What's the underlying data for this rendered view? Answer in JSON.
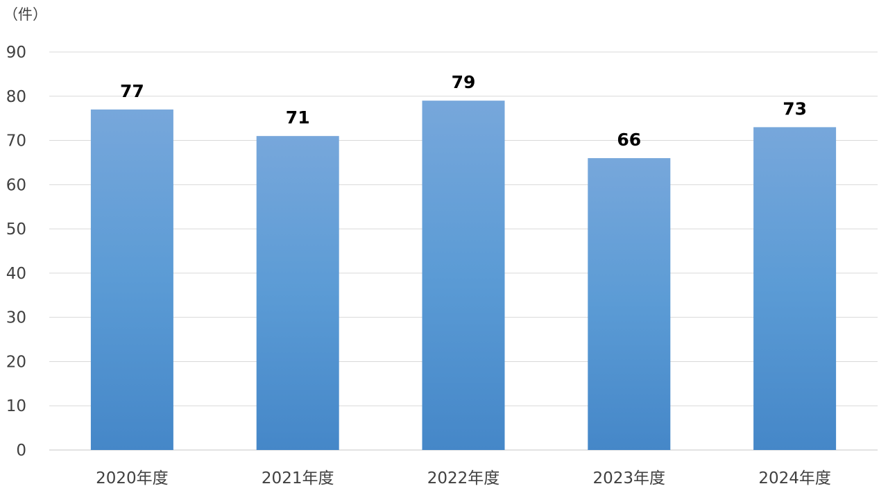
{
  "chart_data": {
    "type": "bar",
    "unit_label": "（件）",
    "categories": [
      "2020年度",
      "2021年度",
      "2022年度",
      "2023年度",
      "2024年度"
    ],
    "values": [
      77,
      71,
      79,
      66,
      73
    ],
    "data_labels": [
      "77",
      "71",
      "79",
      "66",
      "73"
    ],
    "ylim": [
      0,
      90
    ],
    "yticks": [
      "0",
      "10",
      "20",
      "30",
      "40",
      "50",
      "60",
      "70",
      "80",
      "90"
    ],
    "grid": true,
    "legend": "none",
    "colors": {
      "bar_top": "#77A7DB",
      "bar_middle": "#5B9BD5",
      "bar_bottom": "#4587C8",
      "grid": "#D9D9D9",
      "axis_text": "#404040",
      "label_text": "#000000"
    }
  }
}
